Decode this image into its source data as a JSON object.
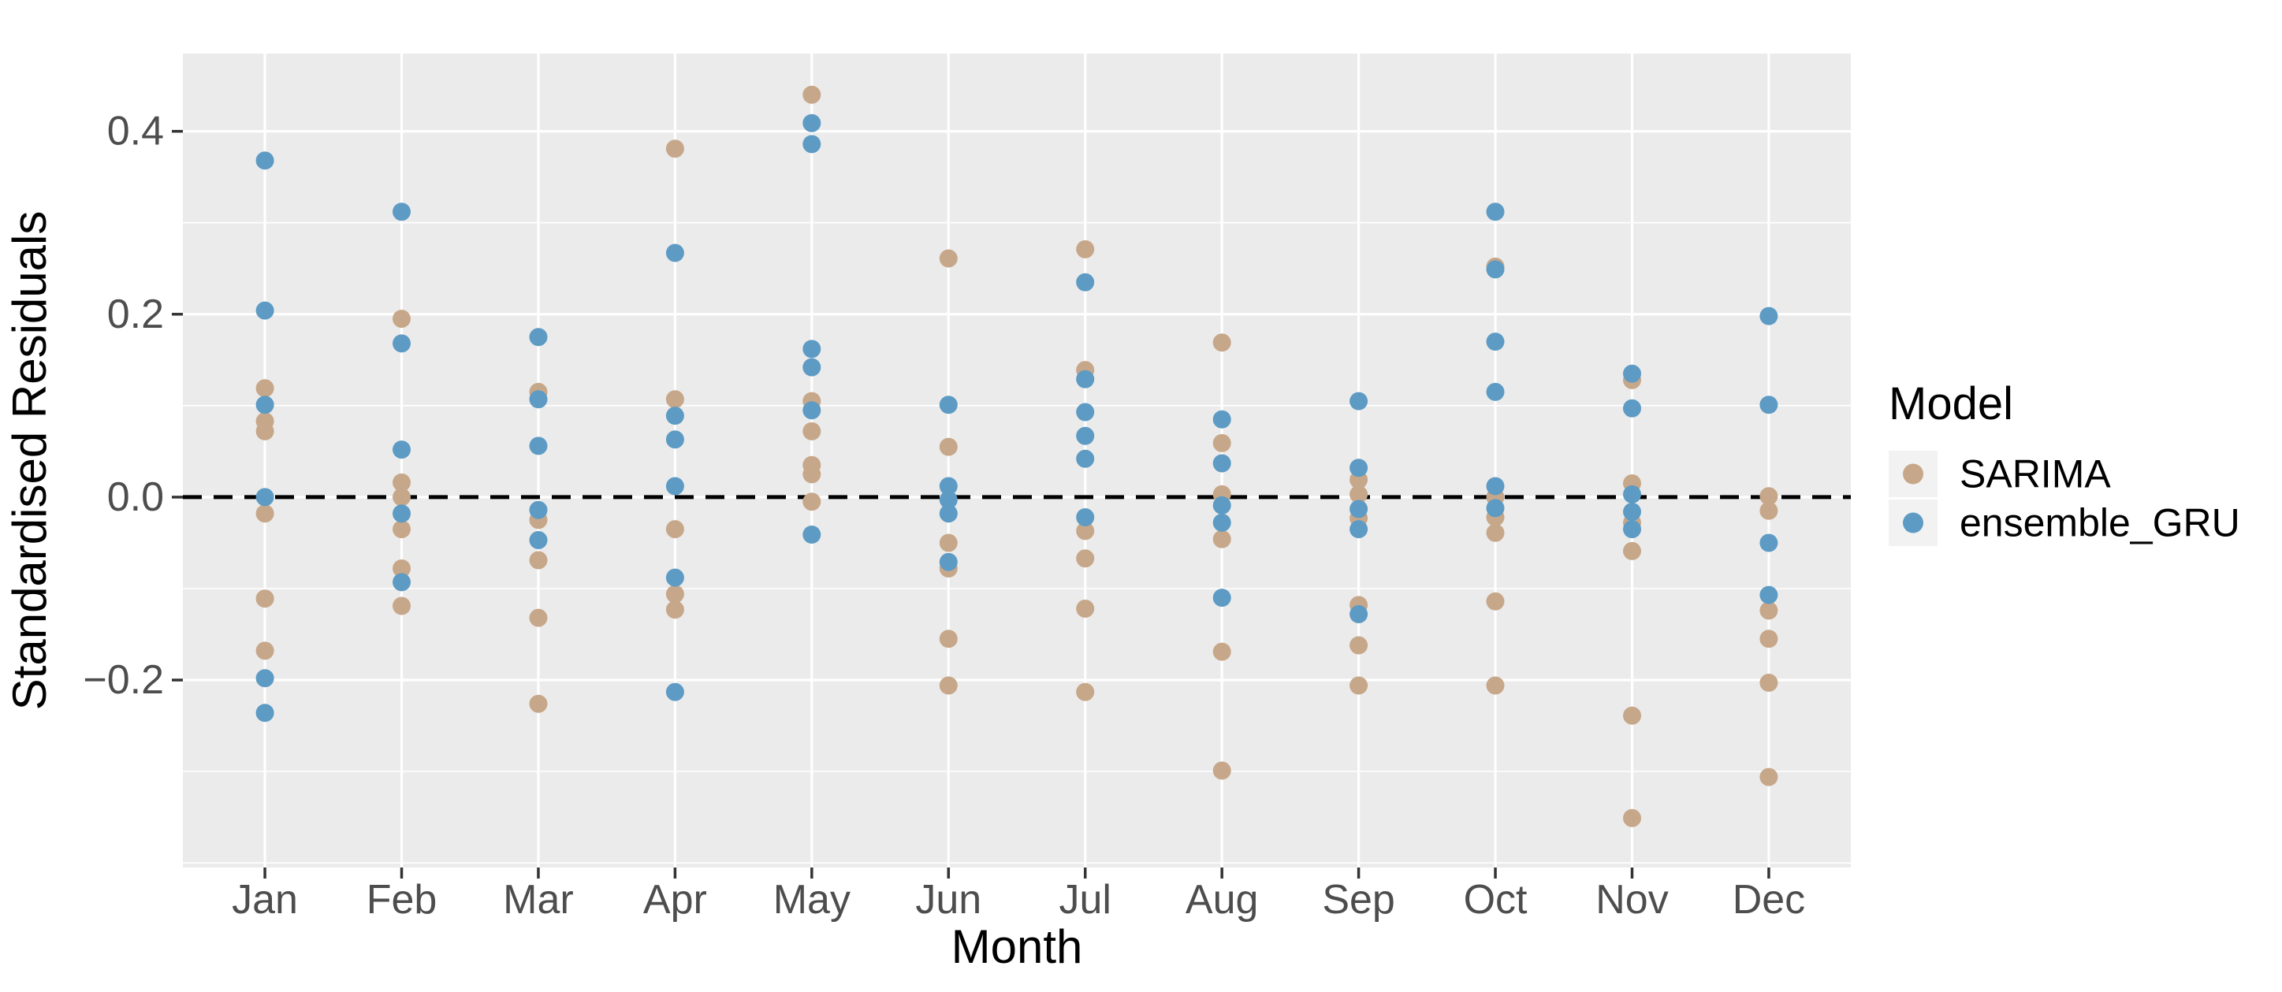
{
  "chart_data": {
    "type": "scatter",
    "title": "",
    "xlabel": "Month",
    "ylabel": "Standardised Residuals",
    "categories": [
      "Jan",
      "Feb",
      "Mar",
      "Apr",
      "May",
      "Jun",
      "Jul",
      "Aug",
      "Sep",
      "Oct",
      "Nov",
      "Dec"
    ],
    "ylim": [
      -0.405,
      0.485
    ],
    "y_ticks": {
      "values": [
        0.4,
        0.2,
        0.0,
        -0.2
      ],
      "labels": [
        "0.4",
        "0.2",
        "0.0",
        "−0.2"
      ]
    },
    "grid": {
      "on": true,
      "major": [
        0.4,
        0.2,
        0.0,
        -0.2
      ],
      "minor": [
        0.3,
        0.1,
        -0.1,
        -0.3,
        -0.4
      ]
    },
    "zero_line": {
      "value": 0.0,
      "style": "dashed",
      "color": "#000000"
    },
    "legend": {
      "title": "Model",
      "position": "right",
      "entries": [
        {
          "label": "SARIMA",
          "color": "#C7A789"
        },
        {
          "label": "ensemble_GRU",
          "color": "#5D9BC4"
        }
      ]
    },
    "series": [
      {
        "name": "SARIMA",
        "color": "#C7A789",
        "values_by_month": [
          [
            0.119,
            0.083,
            0.072,
            -0.018,
            -0.111,
            -0.168
          ],
          [
            0.195,
            0.016,
            0.0,
            -0.035,
            -0.078,
            -0.119
          ],
          [
            0.115,
            -0.025,
            -0.069,
            -0.132,
            -0.226
          ],
          [
            0.381,
            0.107,
            -0.035,
            -0.106,
            -0.123
          ],
          [
            0.44,
            0.105,
            0.072,
            0.035,
            0.025,
            -0.005
          ],
          [
            0.261,
            0.055,
            -0.05,
            -0.078,
            -0.155,
            -0.206
          ],
          [
            0.271,
            0.139,
            -0.037,
            -0.067,
            -0.122,
            -0.213
          ],
          [
            0.169,
            0.059,
            0.003,
            -0.046,
            -0.169,
            -0.299
          ],
          [
            0.019,
            0.003,
            -0.023,
            -0.118,
            -0.162,
            -0.206
          ],
          [
            0.252,
            0.0,
            -0.022,
            -0.039,
            -0.114,
            -0.206
          ],
          [
            0.128,
            0.015,
            -0.028,
            -0.059,
            -0.239,
            -0.351
          ],
          [
            0.001,
            -0.015,
            -0.124,
            -0.155,
            -0.203,
            -0.306
          ]
        ]
      },
      {
        "name": "ensemble_GRU",
        "color": "#5D9BC4",
        "values_by_month": [
          [
            0.368,
            0.204,
            0.101,
            0.0,
            -0.198,
            -0.236
          ],
          [
            0.312,
            0.168,
            0.052,
            -0.018,
            -0.093
          ],
          [
            0.175,
            0.107,
            0.056,
            -0.014,
            -0.047
          ],
          [
            0.267,
            0.089,
            0.063,
            0.012,
            -0.088,
            -0.213
          ],
          [
            0.409,
            0.386,
            0.162,
            0.142,
            0.095,
            -0.041
          ],
          [
            0.101,
            0.012,
            -0.003,
            -0.018,
            -0.071
          ],
          [
            0.235,
            0.129,
            0.093,
            0.067,
            0.042,
            -0.022
          ],
          [
            0.085,
            0.037,
            -0.009,
            -0.028,
            -0.11
          ],
          [
            0.105,
            0.032,
            -0.013,
            -0.035,
            -0.128
          ],
          [
            0.312,
            0.249,
            0.17,
            0.115,
            0.012,
            -0.012
          ],
          [
            0.135,
            0.097,
            0.003,
            -0.016,
            -0.035
          ],
          [
            0.198,
            0.101,
            -0.05,
            -0.107
          ]
        ]
      }
    ]
  },
  "colors": {
    "background": "#FFFFFF",
    "panel_bg": "#EBEBEB",
    "grid": "#FFFFFF",
    "axis_text": "#4D4D4D",
    "axis_title": "#000000",
    "tick_mark": "#333333",
    "legend_key_bg": "#F2F2F2",
    "legend_text": "#000000"
  }
}
